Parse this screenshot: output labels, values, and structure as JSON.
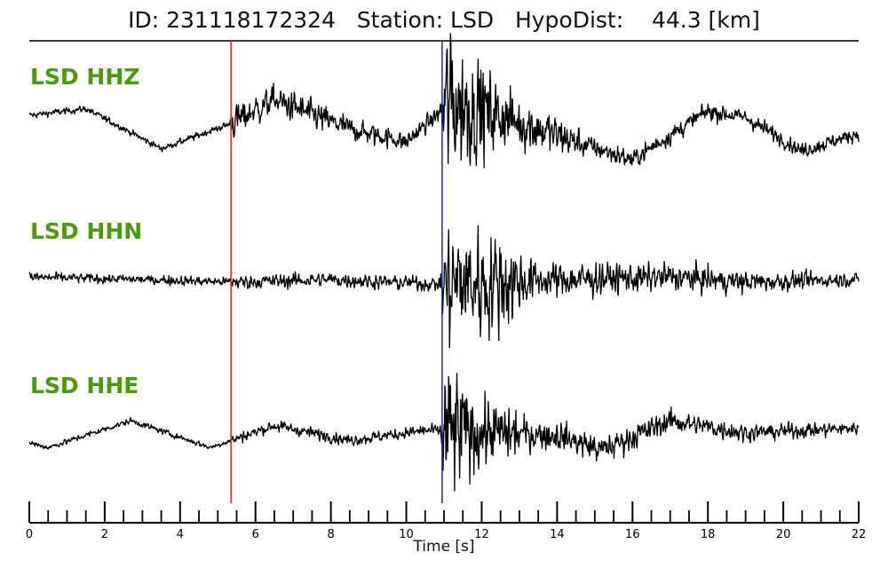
{
  "chart_data": {
    "type": "line",
    "title": "ID: 231118172324   Station: LSD   HypoDist:    44.3 [km]",
    "xlabel": "Time [s]",
    "xlim": [
      0,
      22
    ],
    "x_ticks": [
      0,
      2,
      4,
      6,
      8,
      10,
      12,
      14,
      16,
      18,
      20,
      22
    ],
    "minor_tick_step": 0.5,
    "grid": false,
    "colors": {
      "trace": "#000000",
      "label": "#4a9a0a",
      "p_pick": "#e8221c",
      "s_pick": "#2222cc"
    },
    "picks": [
      {
        "phase": "P",
        "time": 5.35,
        "color": "#e8221c"
      },
      {
        "phase": "S",
        "time": 10.95,
        "color": "#2222cc"
      }
    ],
    "series": [
      {
        "name": "LSD HHZ",
        "envelope_points": [
          [
            0.0,
            0.1
          ],
          [
            1.5,
            0.25
          ],
          [
            3.5,
            -0.65
          ],
          [
            5.3,
            -0.1
          ],
          [
            6.5,
            0.45
          ],
          [
            8.5,
            -0.2
          ],
          [
            10.0,
            -0.5
          ],
          [
            11.2,
            0.4
          ],
          [
            12.5,
            0.1
          ],
          [
            14.5,
            -0.5
          ],
          [
            16.0,
            -0.9
          ],
          [
            18.0,
            0.2
          ],
          [
            19.0,
            0.05
          ],
          [
            20.5,
            -0.7
          ],
          [
            22.0,
            -0.3
          ]
        ],
        "noise": [
          [
            0.0,
            0.05
          ],
          [
            5.3,
            0.05
          ],
          [
            5.4,
            0.25
          ],
          [
            10.9,
            0.12
          ],
          [
            10.95,
            1.2
          ],
          [
            12.5,
            0.5
          ],
          [
            15.0,
            0.15
          ],
          [
            22.0,
            0.1
          ]
        ]
      },
      {
        "name": "LSD HHN",
        "envelope_points": [
          [
            0.0,
            0.05
          ],
          [
            3.0,
            0.0
          ],
          [
            5.5,
            -0.05
          ],
          [
            8.0,
            0.0
          ],
          [
            11.0,
            -0.1
          ],
          [
            14.0,
            0.0
          ],
          [
            17.0,
            0.05
          ],
          [
            19.0,
            -0.05
          ],
          [
            22.0,
            0.0
          ]
        ],
        "noise": [
          [
            0.0,
            0.07
          ],
          [
            5.3,
            0.06
          ],
          [
            5.4,
            0.1
          ],
          [
            10.9,
            0.1
          ],
          [
            10.95,
            0.9
          ],
          [
            12.2,
            0.75
          ],
          [
            13.5,
            0.25
          ],
          [
            22.0,
            0.09
          ]
        ]
      },
      {
        "name": "LSD HHE",
        "envelope_points": [
          [
            0.0,
            -0.25
          ],
          [
            0.5,
            -0.35
          ],
          [
            2.7,
            0.2
          ],
          [
            4.8,
            -0.35
          ],
          [
            6.5,
            0.1
          ],
          [
            8.5,
            -0.2
          ],
          [
            10.5,
            0.0
          ],
          [
            14.0,
            -0.1
          ],
          [
            15.2,
            -0.4
          ],
          [
            17.0,
            0.2
          ],
          [
            19.0,
            -0.05
          ],
          [
            22.0,
            0.05
          ]
        ],
        "noise": [
          [
            0.0,
            0.04
          ],
          [
            5.3,
            0.04
          ],
          [
            5.4,
            0.08
          ],
          [
            10.9,
            0.08
          ],
          [
            10.95,
            1.1
          ],
          [
            11.8,
            0.5
          ],
          [
            13.5,
            0.2
          ],
          [
            22.0,
            0.08
          ]
        ]
      }
    ]
  }
}
